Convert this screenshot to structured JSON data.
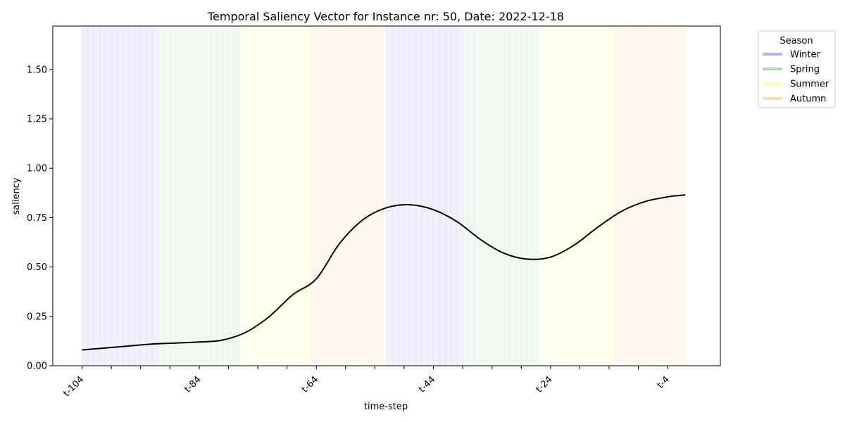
{
  "chart_data": {
    "type": "line",
    "title": "Temporal Saliency Vector for Instance nr: 50, Date: 2022-12-18",
    "xlabel": "time-step",
    "ylabel": "saliency",
    "ylim": [
      0,
      1.72
    ],
    "yticks": [
      "0.00",
      "0.25",
      "0.50",
      "0.75",
      "1.00",
      "1.25",
      "1.50"
    ],
    "xticks": [
      "t-104",
      "t-84",
      "t-64",
      "t-44",
      "t-24",
      "t-4"
    ],
    "grid": false,
    "legend": {
      "title": "Season",
      "placement": "outside-top-right",
      "entries": [
        {
          "label": "Winter",
          "color": "#b3b3ff"
        },
        {
          "label": "Spring",
          "color": "#b0d9b0"
        },
        {
          "label": "Summer",
          "color": "#ffffb3"
        },
        {
          "label": "Autumn",
          "color": "#ffe0b3"
        }
      ]
    },
    "season_spans": [
      {
        "season": "Winter",
        "start": -104,
        "end": -91,
        "color": "#e6e6ff"
      },
      {
        "season": "Spring",
        "start": -91,
        "end": -77,
        "color": "#eaf4ea"
      },
      {
        "season": "Summer",
        "start": -77,
        "end": -65,
        "color": "#ffffe6"
      },
      {
        "season": "Autumn",
        "start": -65,
        "end": -52,
        "color": "#fff3e6"
      },
      {
        "season": "Winter",
        "start": -52,
        "end": -39,
        "color": "#e6e6ff"
      },
      {
        "season": "Spring",
        "start": -39,
        "end": -26,
        "color": "#eaf4ea"
      },
      {
        "season": "Summer",
        "start": -26,
        "end": -13,
        "color": "#ffffe6"
      },
      {
        "season": "Autumn",
        "start": -13,
        "end": -1,
        "color": "#fff3e6"
      }
    ],
    "series": [
      {
        "color": "#000000",
        "x": [
          -104,
          -100,
          -96,
          -92,
          -88,
          -84,
          -80,
          -76,
          -72,
          -68,
          -64,
          -60,
          -56,
          -52,
          -48,
          -44,
          -40,
          -36,
          -32,
          -28,
          -24,
          -20,
          -16,
          -12,
          -8,
          -4,
          -1
        ],
        "values": [
          0.08,
          0.09,
          0.1,
          0.11,
          0.115,
          0.12,
          0.13,
          0.17,
          0.25,
          0.36,
          0.44,
          0.62,
          0.74,
          0.8,
          0.815,
          0.79,
          0.73,
          0.64,
          0.57,
          0.54,
          0.55,
          0.61,
          0.7,
          0.78,
          0.83,
          0.855,
          0.865
        ]
      }
    ]
  }
}
